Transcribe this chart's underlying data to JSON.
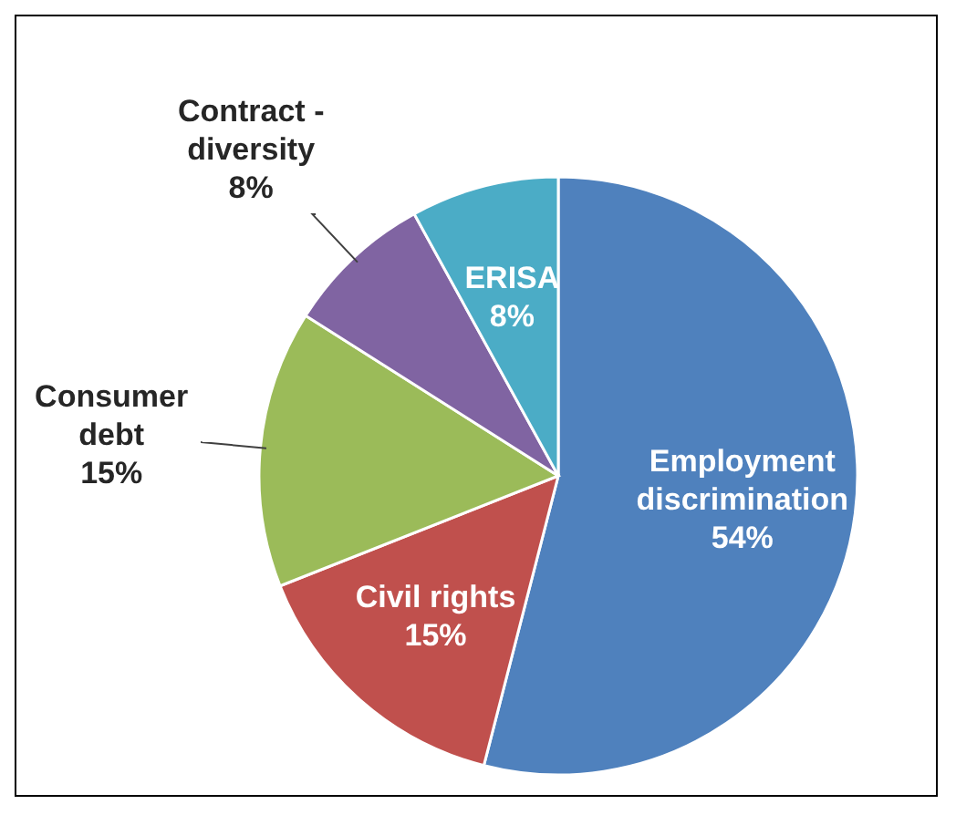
{
  "chart_data": {
    "type": "pie",
    "categories": [
      "Employment discrimination",
      "Civil rights",
      "Consumer debt",
      "Contract - diversity",
      "ERISA"
    ],
    "values": [
      54,
      15,
      15,
      8,
      8
    ],
    "value_labels": [
      "54%",
      "15%",
      "15%",
      "8%",
      "8%"
    ],
    "colors": [
      "#4f81bd",
      "#c0504d",
      "#9bbb59",
      "#8064a2",
      "#4bacc6"
    ]
  }
}
